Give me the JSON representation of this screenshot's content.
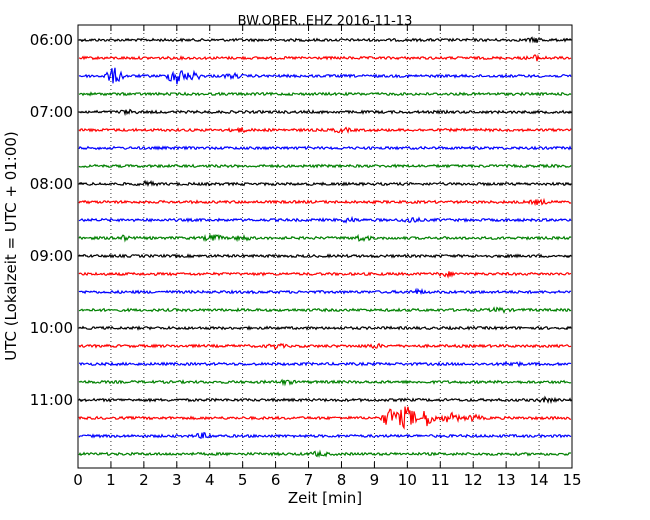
{
  "chart_data": {
    "type": "line",
    "title": "BW.OBER..EHZ 2016-11-13",
    "xlabel": "Zeit  [min]",
    "ylabel": "UTC (Lokalzeit = UTC + 01:00)",
    "xlim": [
      0,
      15
    ],
    "x_ticks": [
      "0",
      "1",
      "2",
      "3",
      "4",
      "5",
      "6",
      "7",
      "8",
      "9",
      "10",
      "11",
      "12",
      "13",
      "14",
      "15"
    ],
    "y_ticks": [
      "06:00",
      "07:00",
      "08:00",
      "09:00",
      "10:00",
      "11:00"
    ],
    "grid": true,
    "trace_colors": [
      "#000000",
      "#ff0000",
      "#0000ff",
      "#008000"
    ],
    "traces": [
      {
        "start": "06:00",
        "events": [
          [
            13.9,
            0.6
          ]
        ]
      },
      {
        "start": "06:15",
        "events": [
          [
            13.9,
            0.7
          ]
        ]
      },
      {
        "start": "06:30",
        "events": [
          [
            1.1,
            2.5
          ],
          [
            3.0,
            3.0
          ],
          [
            3.5,
            1.2
          ],
          [
            4.7,
            0.6
          ]
        ]
      },
      {
        "start": "06:45",
        "events": []
      },
      {
        "start": "07:00",
        "events": [
          [
            1.5,
            0.5
          ]
        ]
      },
      {
        "start": "07:15",
        "events": [
          [
            4.9,
            0.6
          ],
          [
            8.0,
            0.6
          ]
        ]
      },
      {
        "start": "07:30",
        "events": []
      },
      {
        "start": "07:45",
        "events": []
      },
      {
        "start": "08:00",
        "events": [
          [
            2.1,
            0.6
          ]
        ]
      },
      {
        "start": "08:15",
        "events": [
          [
            14.0,
            0.6
          ]
        ]
      },
      {
        "start": "08:30",
        "events": [
          [
            8.2,
            0.6
          ],
          [
            10.1,
            0.8
          ]
        ]
      },
      {
        "start": "08:45",
        "events": [
          [
            1.3,
            0.7
          ],
          [
            4.1,
            1.0
          ],
          [
            5.0,
            0.6
          ],
          [
            8.6,
            0.8
          ]
        ]
      },
      {
        "start": "09:00",
        "events": []
      },
      {
        "start": "09:15",
        "events": [
          [
            11.2,
            0.6
          ]
        ]
      },
      {
        "start": "09:30",
        "events": [
          [
            10.3,
            0.5
          ]
        ]
      },
      {
        "start": "09:45",
        "events": [
          [
            12.8,
            0.6
          ]
        ]
      },
      {
        "start": "10:00",
        "events": []
      },
      {
        "start": "10:15",
        "events": [
          [
            6.0,
            0.6
          ],
          [
            9.0,
            0.5
          ]
        ]
      },
      {
        "start": "10:30",
        "events": [
          [
            13.2,
            0.6
          ]
        ]
      },
      {
        "start": "10:45",
        "events": [
          [
            6.3,
            0.5
          ]
        ]
      },
      {
        "start": "11:00",
        "events": [
          [
            14.2,
            0.5
          ]
        ]
      },
      {
        "start": "11:15",
        "events": [
          [
            9.5,
            3.2
          ],
          [
            10.0,
            4.0
          ],
          [
            10.6,
            2.6
          ],
          [
            11.3,
            1.5
          ],
          [
            12.0,
            0.8
          ]
        ]
      },
      {
        "start": "11:30",
        "events": [
          [
            3.8,
            0.7
          ]
        ]
      },
      {
        "start": "11:45",
        "events": [
          [
            7.3,
            0.6
          ]
        ]
      }
    ]
  }
}
